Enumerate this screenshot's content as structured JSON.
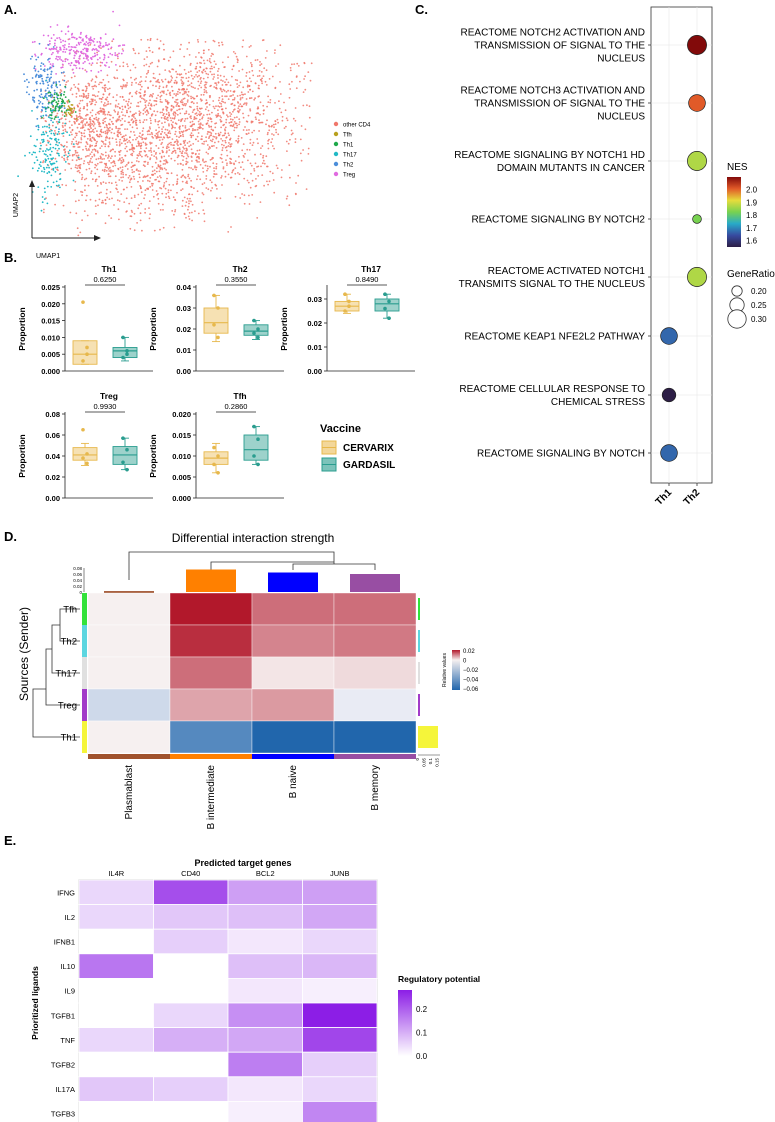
{
  "panel_labels": {
    "a": "A.",
    "b": "B.",
    "c": "C.",
    "d": "D.",
    "e": "E."
  },
  "umap": {
    "xlabel": "UMAP1",
    "ylabel": "UMAP2",
    "legend": [
      {
        "label": "other CD4",
        "color": "#F0776B"
      },
      {
        "label": "Tfh",
        "color": "#B8A01E"
      },
      {
        "label": "Th1",
        "color": "#1FA84A"
      },
      {
        "label": "Th17",
        "color": "#22B9C6"
      },
      {
        "label": "Th2",
        "color": "#4C8EDA"
      },
      {
        "label": "Treg",
        "color": "#E06BE0"
      }
    ]
  },
  "boxplots": {
    "ylabel": "Proportion",
    "legend_title": "Vaccine",
    "groups": [
      {
        "label": "CERVARIX",
        "color": "#E7B84C",
        "fill": "#F3D79A"
      },
      {
        "label": "GARDASIL",
        "color": "#2A9D8F",
        "fill": "#7CC3BA"
      }
    ],
    "plots": [
      {
        "title": "Th1",
        "pvalue": "0.6250",
        "ymax": 0.025,
        "ticks": [
          "0.000",
          "0.005",
          "0.010",
          "0.015",
          "0.020",
          "0.025"
        ],
        "c": {
          "q1": 0.002,
          "med": 0.005,
          "q3": 0.009,
          "lo": 0.002,
          "hi": 0.009,
          "pts": [
            0.0205,
            0.005,
            0.003,
            0.007
          ]
        },
        "g": {
          "q1": 0.004,
          "med": 0.006,
          "q3": 0.007,
          "lo": 0.003,
          "hi": 0.01,
          "pts": [
            0.01,
            0.006,
            0.004,
            0.005
          ]
        }
      },
      {
        "title": "Th2",
        "pvalue": "0.3550",
        "ymax": 0.04,
        "ticks": [
          "0.00",
          "0.01",
          "0.02",
          "0.03",
          "0.04"
        ],
        "c": {
          "q1": 0.018,
          "med": 0.023,
          "q3": 0.03,
          "lo": 0.014,
          "hi": 0.036,
          "pts": [
            0.036,
            0.03,
            0.022,
            0.016
          ]
        },
        "g": {
          "q1": 0.017,
          "med": 0.019,
          "q3": 0.022,
          "lo": 0.015,
          "hi": 0.024,
          "pts": [
            0.024,
            0.02,
            0.018,
            0.016
          ]
        }
      },
      {
        "title": "Th17",
        "pvalue": "0.8490",
        "ymax": 0.035,
        "ticks": [
          "0.00",
          "0.01",
          "0.02",
          "0.03"
        ],
        "c": {
          "q1": 0.025,
          "med": 0.027,
          "q3": 0.029,
          "lo": 0.024,
          "hi": 0.032,
          "pts": [
            0.032,
            0.027,
            0.025,
            0.029
          ]
        },
        "g": {
          "q1": 0.025,
          "med": 0.028,
          "q3": 0.03,
          "lo": 0.022,
          "hi": 0.032,
          "pts": [
            0.032,
            0.029,
            0.026,
            0.022
          ]
        }
      },
      {
        "title": "Treg",
        "pvalue": "0.9930",
        "ymax": 0.08,
        "ticks": [
          "0.00",
          "0.02",
          "0.04",
          "0.06",
          "0.08"
        ],
        "c": {
          "q1": 0.036,
          "med": 0.041,
          "q3": 0.048,
          "lo": 0.031,
          "hi": 0.052,
          "pts": [
            0.065,
            0.042,
            0.038,
            0.033
          ]
        },
        "g": {
          "q1": 0.032,
          "med": 0.041,
          "q3": 0.049,
          "lo": 0.027,
          "hi": 0.057,
          "pts": [
            0.057,
            0.046,
            0.034,
            0.027
          ]
        }
      },
      {
        "title": "Tfh",
        "pvalue": "0.2860",
        "ymax": 0.02,
        "ticks": [
          "0.000",
          "0.005",
          "0.010",
          "0.015",
          "0.020"
        ],
        "c": {
          "q1": 0.008,
          "med": 0.0095,
          "q3": 0.011,
          "lo": 0.006,
          "hi": 0.013,
          "pts": [
            0.012,
            0.01,
            0.008,
            0.006
          ]
        },
        "g": {
          "q1": 0.009,
          "med": 0.0115,
          "q3": 0.015,
          "lo": 0.008,
          "hi": 0.017,
          "pts": [
            0.017,
            0.014,
            0.01,
            0.008
          ]
        }
      }
    ]
  },
  "dotplot": {
    "pathways": [
      {
        "label": "REACTOME NOTCH2 ACTIVATION AND TRANSMISSION OF SIGNAL TO THE NUCLEUS",
        "lines": [
          "REACTOME NOTCH2 ACTIVATION AND",
          "TRANSMISSION OF SIGNAL TO THE",
          "NUCLEUS"
        ],
        "col": "Th2",
        "nes": 2.1,
        "ratio": 0.31
      },
      {
        "label": "REACTOME NOTCH3 ACTIVATION AND TRANSMISSION OF SIGNAL TO THE NUCLEUS",
        "lines": [
          "REACTOME NOTCH3 ACTIVATION AND",
          "TRANSMISSION OF SIGNAL TO THE",
          "NUCLEUS"
        ],
        "col": "Th2",
        "nes": 2.0,
        "ratio": 0.28
      },
      {
        "label": "REACTOME SIGNALING BY NOTCH1 HD DOMAIN MUTANTS IN CANCER",
        "lines": [
          "REACTOME SIGNALING BY NOTCH1 HD",
          "DOMAIN MUTANTS IN CANCER"
        ],
        "col": "Th2",
        "nes": 1.85,
        "ratio": 0.31
      },
      {
        "label": "REACTOME SIGNALING BY NOTCH2",
        "lines": [
          "REACTOME SIGNALING BY NOTCH2"
        ],
        "col": "Th2",
        "nes": 1.8,
        "ratio": 0.18
      },
      {
        "label": "REACTOME ACTIVATED NOTCH1 TRANSMITS SIGNAL TO THE NUCLEUS",
        "lines": [
          "REACTOME ACTIVATED NOTCH1",
          "TRANSMITS SIGNAL TO THE NUCLEUS"
        ],
        "col": "Th2",
        "nes": 1.85,
        "ratio": 0.31
      },
      {
        "label": "REACTOME KEAP1 NFE2L2 PATHWAY",
        "lines": [
          "REACTOME KEAP1 NFE2L2 PATHWAY"
        ],
        "col": "Th1",
        "nes": 1.63,
        "ratio": 0.28
      },
      {
        "label": "REACTOME CELLULAR RESPONSE TO CHEMICAL STRESS",
        "lines": [
          "REACTOME CELLULAR RESPONSE TO",
          "CHEMICAL STRESS"
        ],
        "col": "Th1",
        "nes": 1.55,
        "ratio": 0.24
      },
      {
        "label": "REACTOME SIGNALING BY NOTCH",
        "lines": [
          "REACTOME SIGNALING BY NOTCH"
        ],
        "col": "Th1",
        "nes": 1.63,
        "ratio": 0.28
      }
    ],
    "columns": [
      "Th1",
      "Th2"
    ],
    "nes_title": "NES",
    "nes_ticks": [
      "2.0",
      "1.9",
      "1.8",
      "1.7",
      "1.6"
    ],
    "ratio_title": "GeneRatio",
    "ratio_ticks": [
      "0.20",
      "0.25",
      "0.30"
    ]
  },
  "interaction": {
    "title": "Differential interaction strength",
    "ylabel": "Sources (Sender)",
    "senders": [
      "Tfh",
      "Th2",
      "Th17",
      "Treg",
      "Th1"
    ],
    "sender_colors": [
      "#33E23A",
      "#5CD6E0",
      "#E0E0E0",
      "#A23BC9",
      "#F5F53A"
    ],
    "receivers": [
      "Plasmablast",
      "B intermediate",
      "B naive",
      "B memory"
    ],
    "receiver_colors": [
      "#A0522D",
      "#FF8000",
      "#0000FF",
      "#984EA3"
    ],
    "top_bar": [
      0.003,
      0.075,
      0.065,
      0.06
    ],
    "top_ticks": [
      "0.08",
      "0.06",
      "0.04",
      "0.02",
      "0"
    ],
    "right_bar": [
      0.01,
      0.01,
      0.005,
      0.01,
      0.15
    ],
    "right_ticks": [
      "0",
      "0.05",
      "0.1",
      "0.15"
    ],
    "values": [
      [
        0.0,
        0.02,
        0.012,
        0.012
      ],
      [
        0.0,
        0.018,
        0.01,
        0.011
      ],
      [
        0.0,
        0.012,
        0.001,
        0.002
      ],
      [
        -0.01,
        0.007,
        0.008,
        -0.002
      ],
      [
        0.0,
        -0.045,
        -0.062,
        -0.062
      ]
    ],
    "legend_title": "Relative values",
    "legend_ticks": [
      "0.02",
      "0",
      "−0.02",
      "−0.04",
      "−0.06"
    ]
  },
  "ligand": {
    "title": "Predicted target genes",
    "ylabel": "Prioritized ligands",
    "targets": [
      "IL4R",
      "CD40",
      "BCL2",
      "JUNB"
    ],
    "ligands": [
      "IFNG",
      "IL2",
      "IFNB1",
      "IL10",
      "IL9",
      "TGFB1",
      "TNF",
      "TGFB2",
      "IL17A",
      "TGFB3"
    ],
    "values": [
      [
        0.05,
        0.22,
        0.12,
        0.12
      ],
      [
        0.05,
        0.07,
        0.08,
        0.11
      ],
      [
        0.0,
        0.06,
        0.03,
        0.05
      ],
      [
        0.17,
        0.0,
        0.08,
        0.09
      ],
      [
        0.0,
        0.0,
        0.03,
        0.02
      ],
      [
        0.0,
        0.05,
        0.14,
        0.28
      ],
      [
        0.05,
        0.1,
        0.11,
        0.23
      ],
      [
        0.0,
        0.0,
        0.16,
        0.06
      ],
      [
        0.07,
        0.06,
        0.03,
        0.05
      ],
      [
        0.0,
        0.0,
        0.02,
        0.15
      ]
    ],
    "legend_title": "Regulatory potential",
    "legend_ticks": [
      "0.2",
      "0.1",
      "0.0"
    ]
  }
}
